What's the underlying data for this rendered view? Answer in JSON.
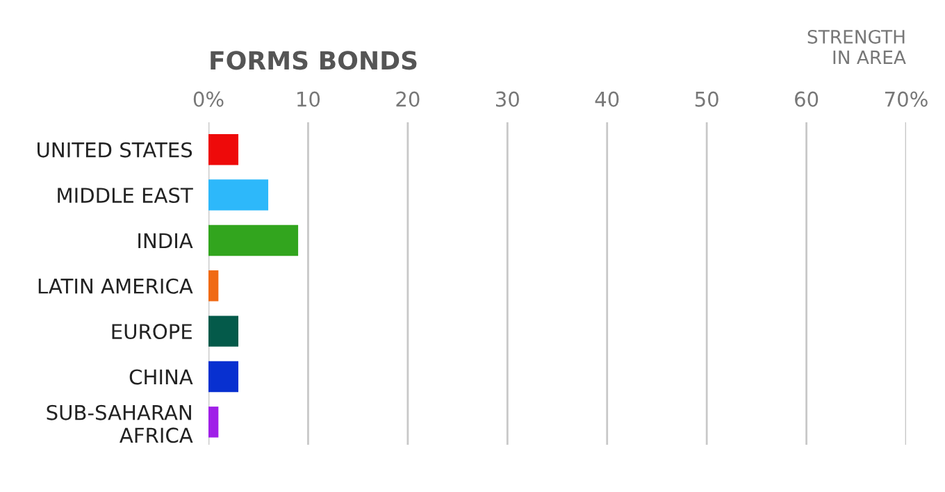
{
  "chart_data": {
    "type": "bar",
    "orientation": "horizontal",
    "title": "FORMS BONDS",
    "xlabel": "STRENGTH\nIN AREA",
    "categories": [
      "UNITED STATES",
      "MIDDLE EAST",
      "INDIA",
      "LATIN AMERICA",
      "EUROPE",
      "CHINA",
      "SUB-SAHARAN\nAFRICA"
    ],
    "values": [
      3,
      6,
      9,
      1,
      3,
      3,
      1
    ],
    "colors": [
      "#ee0a0a",
      "#2db8fa",
      "#32a51e",
      "#f06a14",
      "#045a4a",
      "#0830d0",
      "#a020e8"
    ],
    "xlim": [
      0,
      70
    ],
    "xticks": [
      {
        "value": 0,
        "label": "0%"
      },
      10,
      20,
      30,
      40,
      50,
      60,
      {
        "value": 70,
        "label": "70%"
      }
    ],
    "grid": "x"
  }
}
